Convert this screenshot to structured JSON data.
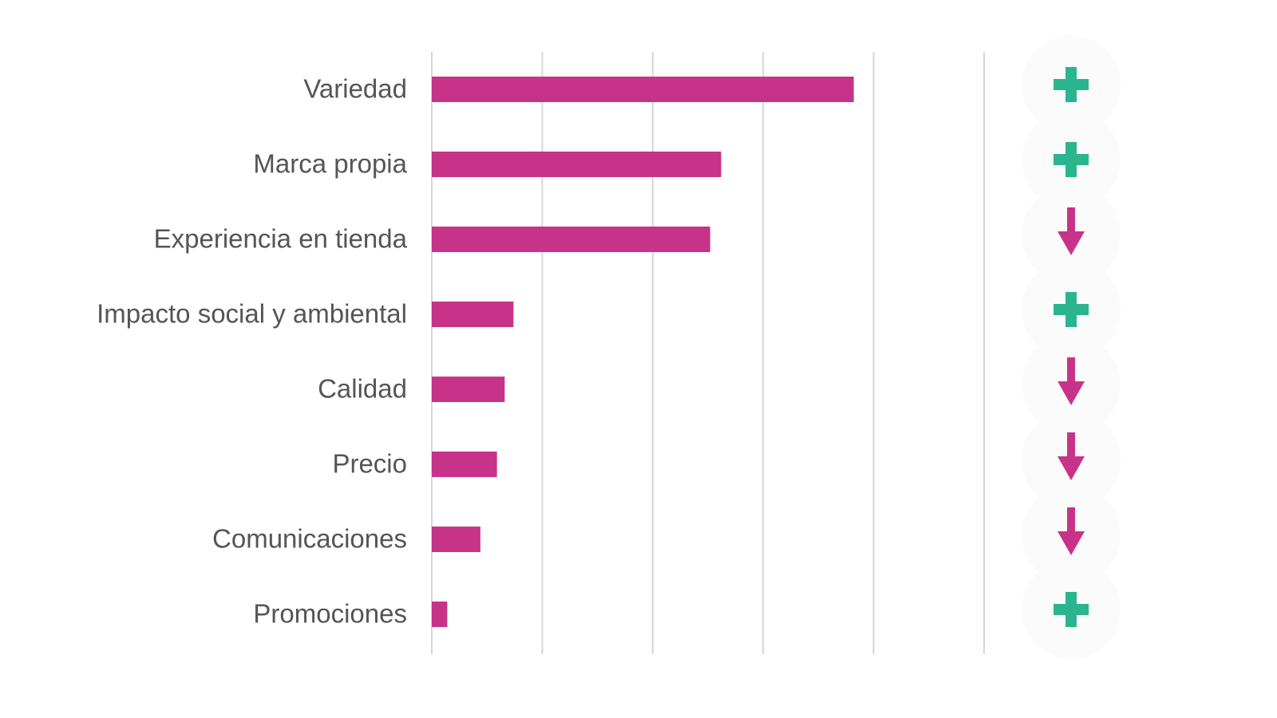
{
  "chart_data": {
    "type": "barh",
    "categories": [
      "Variedad",
      "Marca propia",
      "Experiencia en tienda",
      "Impacto social y ambiental",
      "Calidad",
      "Precio",
      "Comunicaciones",
      "Promociones"
    ],
    "values": [
      3.82,
      2.62,
      2.52,
      0.74,
      0.66,
      0.59,
      0.44,
      0.14
    ],
    "color": "#c8338a",
    "xlim": [
      0,
      5
    ],
    "xticks": [
      0,
      1,
      2,
      3,
      4,
      5
    ],
    "grid": true,
    "markers": [
      "plus",
      "plus",
      "arrow-down",
      "plus",
      "arrow-down",
      "arrow-down",
      "arrow-down",
      "plus"
    ],
    "marker_colors": {
      "plus": "#2bb58f",
      "arrow-down": "#c8338a"
    }
  }
}
